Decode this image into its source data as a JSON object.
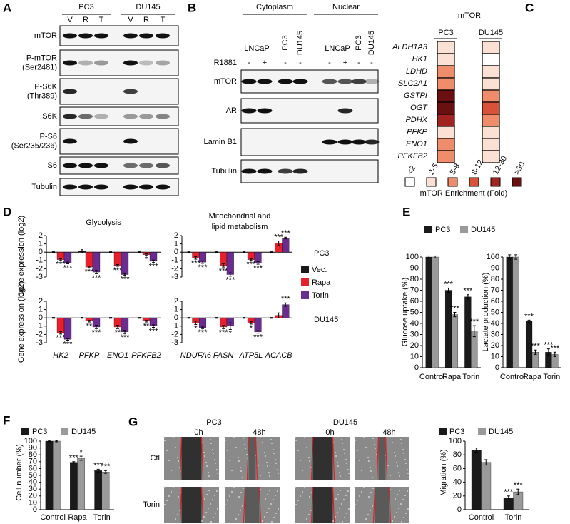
{
  "blots": [
    {
      "label": "A",
      "groups": [
        {
          "name": "PC3",
          "lanes": [
            "V",
            "R",
            "T"
          ]
        },
        {
          "name": "DU145",
          "lanes": [
            "V",
            "R",
            "T"
          ]
        }
      ],
      "rows": [
        [
          "mTOR"
        ],
        [
          "P-mTOR",
          "(Ser2481)"
        ],
        [
          "P-S6K",
          "(Thr389)"
        ],
        [
          "S6K"
        ],
        [
          "P-S6",
          "(Ser235/236)"
        ],
        [
          "S6"
        ],
        [
          "Tubulin"
        ]
      ]
    },
    {
      "label": "B",
      "groups": [
        {
          "name": "Cytoplasm",
          "lanes": [
            "LNCaP",
            "PC3",
            "DU145"
          ]
        },
        {
          "name": "Nuclear",
          "lanes": [
            "LNCaP",
            "PC3",
            "DU145"
          ]
        }
      ],
      "treatment": {
        "name": "R1881",
        "lanes": [
          "-",
          "+",
          "-",
          "-",
          "-",
          "+",
          "-",
          "-"
        ]
      },
      "rows": [
        [
          "mTOR"
        ],
        [
          "AR"
        ],
        [
          "Lamin B1"
        ],
        [
          "Tubulin"
        ]
      ]
    }
  ],
  "chart_data": [
    {
      "type": "heatmap",
      "label": "C",
      "title": "mTOR",
      "columns": [
        "PC3",
        "DU145"
      ],
      "rows": [
        "ALDH1A3",
        "HK1",
        "LDHD",
        "SLC2A1",
        "GSTPI",
        "OGT",
        "PDHX",
        "PFKP",
        "ENO1",
        "PFKFB2"
      ],
      "values": [
        [
          3.5,
          3.5,
          6.5,
          6.5,
          40,
          40,
          20,
          3.5,
          6.5,
          6.5
        ],
        [
          3.5,
          1.5,
          3.5,
          3.5,
          6.5,
          10,
          6.5,
          3.5,
          3.5,
          3.5
        ]
      ],
      "bins": [
        {
          "label": "<2",
          "color": "#ffffff"
        },
        {
          "label": "2-5",
          "color": "#fbe1d3"
        },
        {
          "label": "5-8",
          "color": "#ef8c6c"
        },
        {
          "label": "8-12",
          "color": "#d8523a"
        },
        {
          "label": "12-30",
          "color": "#a2231f"
        },
        {
          "label": ">30",
          "color": "#6b1010"
        }
      ],
      "xlabel": "mTOR Enrichment (Fold)"
    },
    {
      "type": "bar-grid",
      "label": "D",
      "ylabel": "Gene expression (log2)",
      "titles": [
        [
          "Glycolysis"
        ],
        [
          "Mitochondrial and",
          "lipid metabolism"
        ]
      ],
      "row_labels": [
        "PC3",
        "DU145"
      ],
      "categories": [
        [
          "HK2",
          "PFKP",
          "ENO1",
          "PFKFB2"
        ],
        [
          "NDUFA6",
          "FASN",
          "ATP5L",
          "ACACB"
        ]
      ],
      "ylim": [
        -3,
        2
      ],
      "yticks": [
        -3,
        -2,
        -1,
        0,
        1,
        2
      ],
      "series": [
        {
          "name": "Vec.",
          "color": "#1a1a1a",
          "values": [
            [
              [
                0,
                0.1,
                0,
                0
              ],
              [
                0,
                0,
                0,
                0
              ]
            ],
            [
              [
                0,
                0,
                0,
                0
              ],
              [
                0,
                0,
                0,
                0
              ]
            ]
          ],
          "errors": [
            [
              [
                0.05,
                0.2,
                0.05,
                0.05
              ],
              [
                0.05,
                0.05,
                0.05,
                0.05
              ]
            ],
            [
              [
                0.05,
                0.05,
                0.05,
                0.05
              ],
              [
                0.05,
                0.05,
                0.05,
                0.05
              ]
            ]
          ],
          "significance": [
            [
              [
                null,
                null,
                null,
                null
              ],
              [
                null,
                null,
                null,
                null
              ]
            ],
            [
              [
                null,
                null,
                null,
                null
              ],
              [
                null,
                null,
                null,
                null
              ]
            ]
          ]
        },
        {
          "name": "Rapa",
          "color": "#e8202a",
          "values": [
            [
              [
                -0.9,
                -1.8,
                -1.6,
                -0.3
              ],
              [
                -0.7,
                -1.6,
                -0.9,
                1.1
              ]
            ],
            [
              [
                -1.8,
                -0.4,
                -1.1,
                -0.4
              ],
              [
                -0.6,
                -1.1,
                -0.6,
                0.3
              ]
            ]
          ],
          "errors": [
            [
              [
                0.1,
                0.1,
                0.1,
                0.1
              ],
              [
                0.15,
                0.2,
                0.1,
                0.25
              ]
            ],
            [
              [
                0.15,
                0.1,
                0.2,
                0.1
              ],
              [
                0.2,
                0.2,
                0.15,
                0.3
              ]
            ]
          ],
          "significance": [
            [
              [
                "***",
                "***",
                "***",
                "*"
              ],
              [
                "***",
                "***",
                "***",
                "***"
              ]
            ],
            [
              [
                "***",
                "**",
                "**",
                "**"
              ],
              [
                "*",
                "***",
                "*",
                null
              ]
            ]
          ]
        },
        {
          "name": "Torin",
          "color": "#6a2c91",
          "values": [
            [
              [
                -1.3,
                -2.4,
                -2.7,
                -1.1
              ],
              [
                -1.2,
                -2.7,
                -1.3,
                1.7
              ]
            ],
            [
              [
                -2.6,
                -1.1,
                -1.7,
                -1.0
              ],
              [
                -1.2,
                -1.0,
                -1.7,
                1.6
              ]
            ]
          ],
          "errors": [
            [
              [
                0.1,
                0.2,
                0.1,
                0.15
              ],
              [
                0.15,
                0.2,
                0.15,
                0.1
              ]
            ],
            [
              [
                0.1,
                0.2,
                0.2,
                0.15
              ],
              [
                0.1,
                0.4,
                0.15,
                0.2
              ]
            ]
          ],
          "significance": [
            [
              [
                "***",
                "***",
                "***",
                "***"
              ],
              [
                "***",
                "***",
                "***",
                "***"
              ]
            ],
            [
              [
                "***",
                "***",
                "***",
                "***"
              ],
              [
                "***",
                "*",
                "***",
                "***"
              ]
            ]
          ]
        }
      ]
    },
    {
      "type": "bar-multi",
      "label": "E",
      "series": [
        {
          "name": "PC3",
          "color": "#1a1a1a"
        },
        {
          "name": "DU145",
          "color": "#9a9a9a"
        }
      ],
      "categories": [
        "Control",
        "Rapa",
        "Torin"
      ],
      "ylim": [
        0,
        100
      ],
      "yticks": [
        0,
        10,
        20,
        30,
        40,
        50,
        60,
        70,
        80,
        90,
        100
      ],
      "subplots": [
        {
          "ylabel": "Glucose uptake (%)",
          "values": [
            [
              100,
              70,
              64
            ],
            [
              100,
              48,
              33
            ]
          ],
          "errors": [
            [
              1,
              2,
              2
            ],
            [
              1,
              2,
              5
            ]
          ],
          "significance": [
            [
              null,
              "***",
              "***"
            ],
            [
              null,
              "***",
              "***"
            ]
          ]
        },
        {
          "ylabel": "Lactate production (%)",
          "values": [
            [
              100,
              42,
              14
            ],
            [
              100,
              14,
              12
            ]
          ],
          "errors": [
            [
              2,
              1,
              3
            ],
            [
              2,
              2,
              2
            ]
          ],
          "significance": [
            [
              null,
              "***",
              "***"
            ],
            [
              null,
              "***",
              "***"
            ]
          ]
        }
      ]
    },
    {
      "type": "bar",
      "label": "F",
      "ylabel": "Cell number (%)",
      "categories": [
        "Control",
        "Rapa",
        "Torin"
      ],
      "ylim": [
        0,
        100
      ],
      "yticks": [
        0,
        10,
        20,
        30,
        40,
        50,
        60,
        70,
        80,
        90,
        100
      ],
      "series": [
        {
          "name": "PC3",
          "color": "#1a1a1a",
          "values": [
            100,
            69,
            57
          ],
          "errors": [
            1,
            1,
            2
          ],
          "significance": [
            null,
            "***",
            "***"
          ]
        },
        {
          "name": "DU145",
          "color": "#9a9a9a",
          "values": [
            100,
            75,
            55
          ],
          "errors": [
            1,
            3,
            2
          ],
          "significance": [
            null,
            "*",
            "***"
          ]
        }
      ]
    },
    {
      "type": "bar",
      "ylabel": "Migration (%)",
      "categories": [
        "Control",
        "Torin"
      ],
      "ylim": [
        0,
        100
      ],
      "yticks": [
        0,
        20,
        40,
        60,
        80,
        100
      ],
      "series": [
        {
          "name": "PC3",
          "color": "#1a1a1a",
          "values": [
            87,
            17
          ],
          "errors": [
            3,
            3
          ],
          "significance": [
            null,
            "***"
          ]
        },
        {
          "name": "DU145",
          "color": "#9a9a9a",
          "values": [
            69,
            26
          ],
          "errors": [
            4,
            4
          ],
          "significance": [
            null,
            "***"
          ]
        }
      ]
    }
  ],
  "scratch_assay": {
    "label": "G",
    "cell_lines": [
      {
        "name": "PC3",
        "times": [
          "0h",
          "48h"
        ]
      },
      {
        "name": "DU145",
        "times": [
          "0h",
          "48h"
        ]
      }
    ],
    "conditions": [
      "Ctl",
      "Torin"
    ]
  }
}
